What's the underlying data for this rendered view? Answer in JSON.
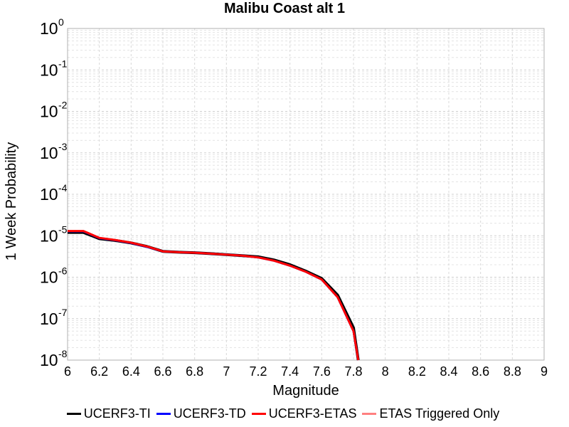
{
  "chart_data": {
    "type": "line",
    "title": "Malibu Coast alt 1",
    "xlabel": "Magnitude",
    "ylabel": "1 Week Probability",
    "xlim": [
      6,
      9
    ],
    "ylim": [
      1e-08,
      1
    ],
    "yscale": "log",
    "grid": true,
    "legend_position": "bottom",
    "x_ticks": [
      "6",
      "6.2",
      "6.4",
      "6.6",
      "6.8",
      "7",
      "7.2",
      "7.4",
      "7.6",
      "7.8",
      "8",
      "8.2",
      "8.4",
      "8.6",
      "8.8",
      "9"
    ],
    "y_tick_exponents": [
      "0",
      "-1",
      "-2",
      "-3",
      "-4",
      "-5",
      "-6",
      "-7",
      "-8"
    ],
    "series": [
      {
        "name": "UCERF3-TI",
        "color": "#000000",
        "x": [
          6.0,
          6.1,
          6.2,
          6.3,
          6.4,
          6.5,
          6.6,
          6.7,
          6.8,
          6.9,
          7.0,
          7.1,
          7.2,
          7.3,
          7.4,
          7.5,
          7.6,
          7.7,
          7.8,
          7.83
        ],
        "y": [
          1.2e-05,
          1.2e-05,
          8.5e-06,
          7.7e-06,
          6.7e-06,
          5.5e-06,
          4.2e-06,
          4e-06,
          3.9e-06,
          3.7e-06,
          3.5e-06,
          3.3e-06,
          3.1e-06,
          2.6e-06,
          2e-06,
          1.4e-06,
          9.3e-07,
          3.7e-07,
          6e-08,
          1e-08
        ]
      },
      {
        "name": "UCERF3-TD",
        "color": "#0000ff",
        "x": [
          6.0,
          6.1,
          6.2,
          6.3,
          6.4,
          6.5,
          6.6,
          6.7,
          6.8,
          6.9,
          7.0,
          7.1,
          7.2,
          7.3,
          7.4,
          7.5,
          7.6,
          7.7,
          7.8,
          7.83
        ],
        "y": [
          1.28e-05,
          1.28e-05,
          8.8e-06,
          7.8e-06,
          6.7e-06,
          5.4e-06,
          4.2e-06,
          4e-06,
          3.9e-06,
          3.7e-06,
          3.5e-06,
          3.3e-06,
          3e-06,
          2.5e-06,
          1.9e-06,
          1.35e-06,
          8.8e-07,
          3.3e-07,
          5e-08,
          1e-08
        ]
      },
      {
        "name": "UCERF3-ETAS",
        "color": "#ff0000",
        "x": [
          6.0,
          6.1,
          6.2,
          6.3,
          6.4,
          6.5,
          6.6,
          6.7,
          6.8,
          6.9,
          7.0,
          7.1,
          7.2,
          7.3,
          7.4,
          7.5,
          7.6,
          7.7,
          7.8,
          7.83
        ],
        "y": [
          1.3e-05,
          1.3e-05,
          8.9e-06,
          7.9e-06,
          6.8e-06,
          5.5e-06,
          4.2e-06,
          4e-06,
          3.9e-06,
          3.7e-06,
          3.5e-06,
          3.3e-06,
          3e-06,
          2.5e-06,
          1.9e-06,
          1.35e-06,
          8.8e-07,
          3.3e-07,
          5e-08,
          1e-08
        ]
      },
      {
        "name": "ETAS Triggered Only",
        "color": "#ff8080",
        "x": [],
        "y": []
      }
    ]
  }
}
